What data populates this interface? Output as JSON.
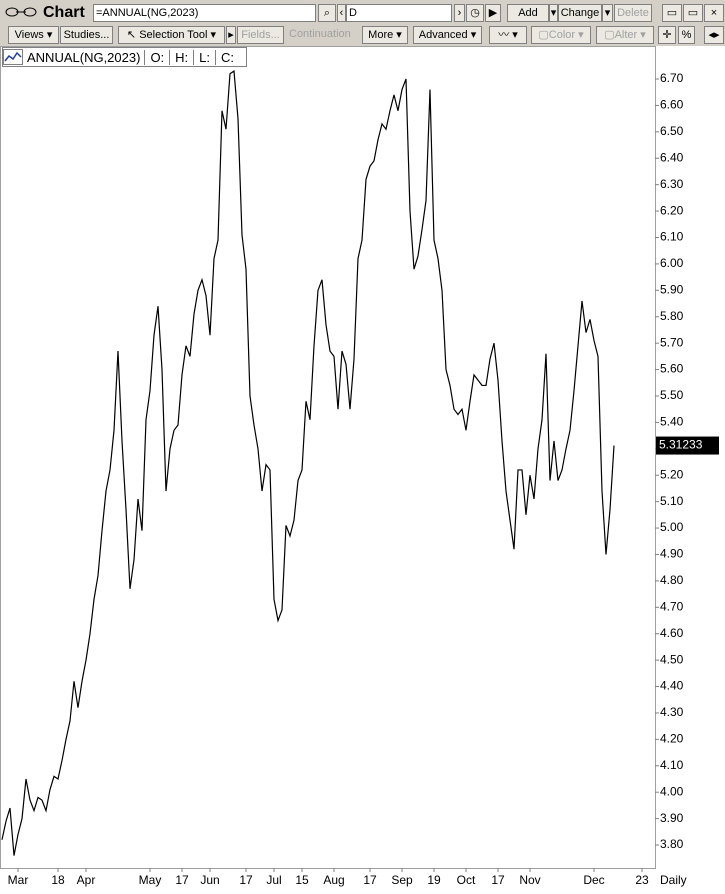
{
  "window": {
    "title": "Chart",
    "security": "=ANNUAL(NG,2023)",
    "period": "D",
    "buttons": [
      "Add",
      "Change",
      "Delete"
    ],
    "toolbar": [
      "Views",
      "Studies...",
      "Selection Tool",
      "Fields...",
      "Continuation",
      "More",
      "Advanced",
      "Color",
      "Alter",
      "%"
    ]
  },
  "chart_data": {
    "type": "line",
    "legend_fields": [
      "O:",
      "H:",
      "L:",
      "C:"
    ],
    "periodicity": "Daily",
    "categories": [
      null,
      null,
      null,
      null,
      "Mar",
      null,
      null,
      null,
      null,
      null,
      null,
      null,
      null,
      null,
      "18",
      null,
      null,
      null,
      null,
      null,
      null,
      "Apr",
      null,
      null,
      null,
      null,
      null,
      null,
      null,
      null,
      null,
      null,
      null,
      null,
      null,
      null,
      null,
      "May",
      null,
      null,
      null,
      null,
      null,
      null,
      null,
      "17",
      null,
      null,
      null,
      null,
      null,
      null,
      "Jun",
      null,
      null,
      null,
      null,
      null,
      null,
      null,
      null,
      "17",
      null,
      null,
      null,
      null,
      null,
      null,
      "Jul",
      null,
      null,
      null,
      null,
      null,
      null,
      "15",
      null,
      null,
      null,
      null,
      null,
      null,
      null,
      "Aug",
      null,
      null,
      null,
      null,
      null,
      null,
      null,
      null,
      "17",
      null,
      null,
      null,
      null,
      null,
      null,
      null,
      "Sep",
      null,
      null,
      null,
      null,
      null,
      null,
      null,
      "19",
      null,
      null,
      null,
      null,
      null,
      null,
      null,
      "Oct",
      null,
      null,
      null,
      null,
      null,
      null,
      null,
      "17",
      null,
      null,
      null,
      null,
      null,
      null,
      null,
      "Nov",
      null,
      null,
      null,
      null,
      null,
      null,
      null,
      null,
      null,
      null,
      null,
      null,
      null,
      null,
      null,
      "Dec",
      null,
      null,
      null,
      null,
      null,
      null,
      null,
      null,
      null,
      null,
      null,
      "23"
    ],
    "series": [
      {
        "name": "ANNUAL(NG,2023)",
        "color": "#000000",
        "values": [
          3.82,
          3.89,
          3.94,
          3.76,
          3.84,
          3.9,
          4.05,
          3.97,
          3.93,
          3.98,
          3.97,
          3.93,
          4.01,
          4.06,
          4.05,
          4.12,
          4.2,
          4.27,
          4.42,
          4.32,
          4.42,
          4.5,
          4.6,
          4.73,
          4.82,
          4.99,
          5.14,
          5.22,
          5.37,
          5.67,
          5.33,
          5.07,
          4.77,
          4.88,
          5.11,
          4.99,
          5.41,
          5.52,
          5.73,
          5.84,
          5.6,
          5.14,
          5.3,
          5.37,
          5.39,
          5.58,
          5.69,
          5.65,
          5.81,
          5.9,
          5.94,
          5.88,
          5.73,
          6.02,
          6.09,
          6.58,
          6.51,
          6.72,
          6.73,
          6.55,
          6.11,
          5.98,
          5.5,
          5.39,
          5.3,
          5.14,
          5.24,
          5.22,
          4.73,
          4.65,
          4.69,
          5.01,
          4.97,
          5.03,
          5.18,
          5.22,
          5.48,
          5.41,
          5.69,
          5.9,
          5.94,
          5.77,
          5.67,
          5.65,
          5.45,
          5.67,
          5.62,
          5.45,
          5.64,
          6.02,
          6.09,
          6.32,
          6.37,
          6.39,
          6.47,
          6.53,
          6.51,
          6.58,
          6.64,
          6.58,
          6.66,
          6.7,
          6.2,
          5.98,
          6.03,
          6.13,
          6.24,
          6.66,
          6.09,
          6.02,
          5.9,
          5.6,
          5.54,
          5.45,
          5.43,
          5.45,
          5.37,
          5.48,
          5.58,
          5.56,
          5.54,
          5.54,
          5.64,
          5.7,
          5.56,
          5.33,
          5.14,
          5.03,
          4.92,
          5.22,
          5.22,
          5.05,
          5.2,
          5.11,
          5.3,
          5.41,
          5.66,
          5.18,
          5.33,
          5.18,
          5.22,
          5.3,
          5.37,
          5.52,
          5.69,
          5.86,
          5.74,
          5.79,
          5.71,
          5.65,
          5.14,
          4.9,
          5.07,
          5.31233,
          null,
          null,
          null,
          null,
          null,
          null,
          null
        ]
      }
    ],
    "ylim": [
      3.713,
      6.825
    ],
    "yticks": [
      {
        "value": 3.8,
        "label": "3.80"
      },
      {
        "value": 3.9,
        "label": "3.90"
      },
      {
        "value": 4.0,
        "label": "4.00"
      },
      {
        "value": 4.1,
        "label": "4.10"
      },
      {
        "value": 4.2,
        "label": "4.20"
      },
      {
        "value": 4.3,
        "label": "4.30"
      },
      {
        "value": 4.4,
        "label": "4.40"
      },
      {
        "value": 4.5,
        "label": "4.50"
      },
      {
        "value": 4.6,
        "label": "4.60"
      },
      {
        "value": 4.7,
        "label": "4.70"
      },
      {
        "value": 4.8,
        "label": "4.80"
      },
      {
        "value": 4.9,
        "label": "4.90"
      },
      {
        "value": 5.0,
        "label": "5.00"
      },
      {
        "value": 5.1,
        "label": "5.10"
      },
      {
        "value": 5.2,
        "label": "5.20"
      },
      {
        "value": 5.3,
        "label": "5.30"
      },
      {
        "value": 5.4,
        "label": "5.40"
      },
      {
        "value": 5.5,
        "label": "5.50"
      },
      {
        "value": 5.6,
        "label": "5.60"
      },
      {
        "value": 5.7,
        "label": "5.70"
      },
      {
        "value": 5.8,
        "label": "5.80"
      },
      {
        "value": 5.9,
        "label": "5.90"
      },
      {
        "value": 6.0,
        "label": "6.00"
      },
      {
        "value": 6.1,
        "label": "6.10"
      },
      {
        "value": 6.2,
        "label": "6.20"
      },
      {
        "value": 6.3,
        "label": "6.30"
      },
      {
        "value": 6.4,
        "label": "6.40"
      },
      {
        "value": 6.5,
        "label": "6.50"
      },
      {
        "value": 6.6,
        "label": "6.60"
      },
      {
        "value": 6.7,
        "label": "6.70"
      }
    ],
    "grid": false
  }
}
